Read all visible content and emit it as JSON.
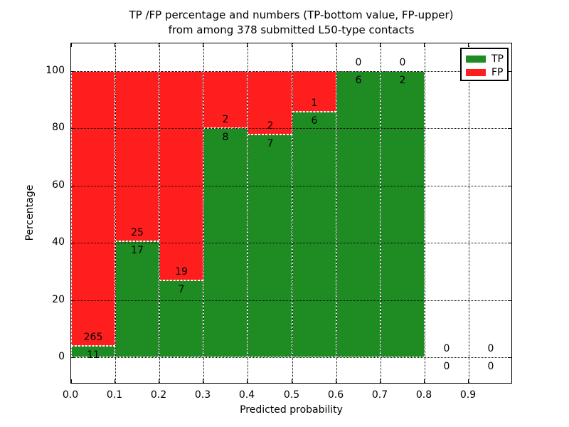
{
  "chart_data": {
    "type": "bar",
    "stacked": true,
    "title_line1": "TP /FP percentage and numbers (TP-bottom value, FP-upper)",
    "title_line2": "from among 378 submitted L50-type contacts",
    "xlabel": "Predicted probability",
    "ylabel": "Percentage",
    "xlim": [
      0.0,
      1.0
    ],
    "ylim": [
      -10,
      110
    ],
    "xticks": [
      "0.0",
      "0.1",
      "0.2",
      "0.3",
      "0.4",
      "0.5",
      "0.6",
      "0.7",
      "0.8",
      "0.9"
    ],
    "yticks": [
      0,
      20,
      40,
      60,
      80,
      100
    ],
    "grid": true,
    "grid_style": "black dotted, drawn over bars",
    "bar_edge_style": "white dashed",
    "legend": {
      "position": "upper right",
      "entries": [
        {
          "label": "TP",
          "color": "#1e8c23"
        },
        {
          "label": "FP",
          "color": "#ff1e1e"
        }
      ]
    },
    "bins": [
      {
        "range": [
          0.0,
          0.1
        ],
        "tp": 11,
        "fp": 265
      },
      {
        "range": [
          0.1,
          0.2
        ],
        "tp": 17,
        "fp": 25
      },
      {
        "range": [
          0.2,
          0.3
        ],
        "tp": 7,
        "fp": 19
      },
      {
        "range": [
          0.3,
          0.4
        ],
        "tp": 8,
        "fp": 2
      },
      {
        "range": [
          0.4,
          0.5
        ],
        "tp": 7,
        "fp": 2
      },
      {
        "range": [
          0.5,
          0.6
        ],
        "tp": 6,
        "fp": 1
      },
      {
        "range": [
          0.6,
          0.7
        ],
        "tp": 6,
        "fp": 0
      },
      {
        "range": [
          0.7,
          0.8
        ],
        "tp": 2,
        "fp": 0
      },
      {
        "range": [
          0.8,
          0.9
        ],
        "tp": 0,
        "fp": 0
      },
      {
        "range": [
          0.9,
          1.0
        ],
        "tp": 0,
        "fp": 0
      }
    ],
    "value_label_convention": "TP count below segment boundary, FP count above"
  }
}
